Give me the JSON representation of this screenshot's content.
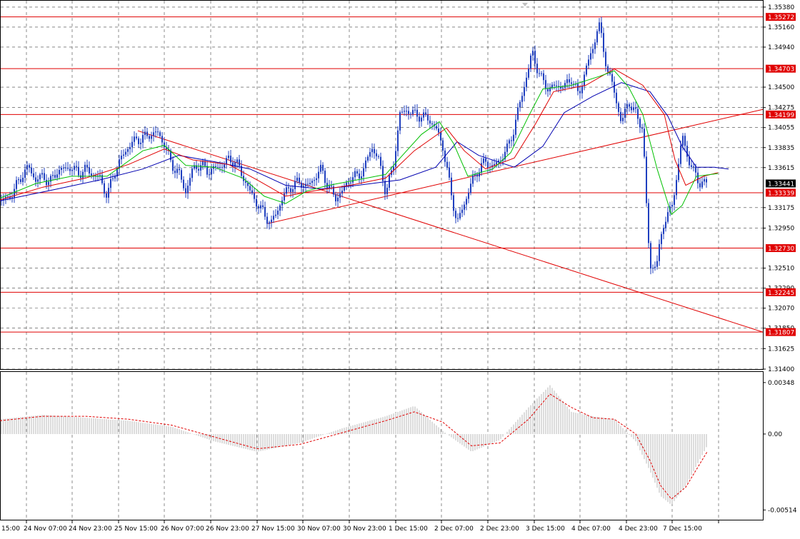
{
  "colors": {
    "background": "#ffffff",
    "candle": "#1f3fbf",
    "level": "#e00000",
    "trendline": "#e00000",
    "ma_fast": "#00c000",
    "ma_mid": "#e00000",
    "ma_slow": "#0000b0",
    "grid": "#000000",
    "current_price_badge": "#000000",
    "level_badge": "#e00000",
    "macd_hist": "#b8b8b8",
    "macd_signal": "#e00000"
  },
  "chart_data": [
    {
      "type": "candlestick",
      "title": "",
      "price_axis_ticks": [
        "1.35380",
        "1.35160",
        "1.34940",
        "1.34500",
        "1.34275",
        "1.34055",
        "1.33835",
        "1.33615",
        "1.33175",
        "1.32950",
        "1.32510",
        "1.32290",
        "1.32070",
        "1.31850",
        "1.31625",
        "1.31400"
      ],
      "ylim": [
        1.314,
        1.3545
      ],
      "time_axis_labels": [
        "15:00",
        "24 Nov 07:00",
        "24 Nov 23:00",
        "25 Nov 15:00",
        "26 Nov 07:00",
        "26 Nov 23:00",
        "27 Nov 15:00",
        "30 Nov 07:00",
        "30 Nov 23:00",
        "1 Dec 15:00",
        "2 Dec 07:00",
        "2 Dec 23:00",
        "3 Dec 15:00",
        "4 Dec 07:00",
        "4 Dec 23:00",
        "7 Dec 15:00"
      ],
      "horizontal_levels": [
        "1.35272",
        "1.34703",
        "1.34199",
        "1.33339",
        "1.32730",
        "1.32245",
        "1.31807"
      ],
      "current_price": "1.33441",
      "grid": true,
      "price_path": [
        [
          0,
          1.3325
        ],
        [
          12,
          1.3328
        ],
        [
          22,
          1.334
        ],
        [
          32,
          1.3355
        ],
        [
          40,
          1.3362
        ],
        [
          50,
          1.3348
        ],
        [
          60,
          1.3352
        ],
        [
          70,
          1.3345
        ],
        [
          80,
          1.3358
        ],
        [
          90,
          1.336
        ],
        [
          100,
          1.3362
        ],
        [
          110,
          1.3355
        ],
        [
          120,
          1.336
        ],
        [
          130,
          1.3354
        ],
        [
          140,
          1.335
        ],
        [
          150,
          1.333
        ],
        [
          160,
          1.3356
        ],
        [
          170,
          1.3372
        ],
        [
          180,
          1.3385
        ],
        [
          190,
          1.3392
        ],
        [
          200,
          1.3394
        ],
        [
          210,
          1.3398
        ],
        [
          220,
          1.34
        ],
        [
          230,
          1.3388
        ],
        [
          240,
          1.3365
        ],
        [
          250,
          1.3356
        ],
        [
          260,
          1.3335
        ],
        [
          270,
          1.336
        ],
        [
          280,
          1.3365
        ],
        [
          290,
          1.3358
        ],
        [
          300,
          1.336
        ],
        [
          310,
          1.3364
        ],
        [
          320,
          1.337
        ],
        [
          330,
          1.3368
        ],
        [
          340,
          1.3352
        ],
        [
          350,
          1.3335
        ],
        [
          360,
          1.3322
        ],
        [
          370,
          1.331
        ],
        [
          380,
          1.33
        ],
        [
          390,
          1.3318
        ],
        [
          400,
          1.3335
        ],
        [
          410,
          1.3342
        ],
        [
          420,
          1.3346
        ],
        [
          430,
          1.334
        ],
        [
          440,
          1.335
        ],
        [
          450,
          1.336
        ],
        [
          460,
          1.334
        ],
        [
          470,
          1.3328
        ],
        [
          480,
          1.3336
        ],
        [
          490,
          1.335
        ],
        [
          500,
          1.3352
        ],
        [
          510,
          1.336
        ],
        [
          520,
          1.3385
        ],
        [
          530,
          1.337
        ],
        [
          540,
          1.3335
        ],
        [
          550,
          1.336
        ],
        [
          560,
          1.342
        ],
        [
          570,
          1.3425
        ],
        [
          580,
          1.342
        ],
        [
          590,
          1.3418
        ],
        [
          600,
          1.3415
        ],
        [
          610,
          1.3405
        ],
        [
          620,
          1.3385
        ],
        [
          630,
          1.334
        ],
        [
          640,
          1.33
        ],
        [
          650,
          1.3322
        ],
        [
          660,
          1.3345
        ],
        [
          670,
          1.336
        ],
        [
          680,
          1.3368
        ],
        [
          690,
          1.3362
        ],
        [
          700,
          1.337
        ],
        [
          710,
          1.3382
        ],
        [
          720,
          1.3405
        ],
        [
          730,
          1.344
        ],
        [
          740,
          1.347
        ],
        [
          745,
          1.349
        ],
        [
          750,
          1.3475
        ],
        [
          760,
          1.3455
        ],
        [
          770,
          1.3448
        ],
        [
          780,
          1.3452
        ],
        [
          790,
          1.345
        ],
        [
          800,
          1.346
        ],
        [
          810,
          1.344
        ],
        [
          820,
          1.347
        ],
        [
          830,
          1.3492
        ],
        [
          838,
          1.3522
        ],
        [
          845,
          1.349
        ],
        [
          852,
          1.3465
        ],
        [
          860,
          1.3445
        ],
        [
          870,
          1.341
        ],
        [
          880,
          1.3435
        ],
        [
          890,
          1.342
        ],
        [
          900,
          1.3405
        ],
        [
          905,
          1.332
        ],
        [
          910,
          1.325
        ],
        [
          920,
          1.3258
        ],
        [
          930,
          1.3305
        ],
        [
          940,
          1.3315
        ],
        [
          950,
          1.3365
        ],
        [
          955,
          1.3398
        ],
        [
          960,
          1.338
        ],
        [
          970,
          1.3358
        ],
        [
          980,
          1.3345
        ],
        [
          990,
          1.3344
        ]
      ],
      "ma_fast": [
        [
          0,
          1.3328
        ],
        [
          50,
          1.3344
        ],
        [
          100,
          1.3352
        ],
        [
          150,
          1.3352
        ],
        [
          200,
          1.338
        ],
        [
          230,
          1.3386
        ],
        [
          260,
          1.3364
        ],
        [
          300,
          1.3362
        ],
        [
          340,
          1.335
        ],
        [
          370,
          1.333
        ],
        [
          400,
          1.3322
        ],
        [
          430,
          1.3336
        ],
        [
          460,
          1.3342
        ],
        [
          500,
          1.3348
        ],
        [
          540,
          1.3354
        ],
        [
          560,
          1.3372
        ],
        [
          590,
          1.3398
        ],
        [
          615,
          1.3412
        ],
        [
          635,
          1.3388
        ],
        [
          655,
          1.3352
        ],
        [
          690,
          1.336
        ],
        [
          715,
          1.3378
        ],
        [
          740,
          1.3418
        ],
        [
          760,
          1.3448
        ],
        [
          800,
          1.3452
        ],
        [
          840,
          1.3462
        ],
        [
          860,
          1.3468
        ],
        [
          880,
          1.345
        ],
        [
          900,
          1.342
        ],
        [
          920,
          1.336
        ],
        [
          940,
          1.331
        ],
        [
          955,
          1.332
        ],
        [
          975,
          1.3352
        ],
        [
          1005,
          1.3355
        ]
      ],
      "ma_mid": [
        [
          0,
          1.3326
        ],
        [
          60,
          1.334
        ],
        [
          120,
          1.335
        ],
        [
          180,
          1.3365
        ],
        [
          230,
          1.3382
        ],
        [
          270,
          1.337
        ],
        [
          320,
          1.3365
        ],
        [
          360,
          1.3348
        ],
        [
          400,
          1.333
        ],
        [
          440,
          1.3336
        ],
        [
          490,
          1.3342
        ],
        [
          540,
          1.335
        ],
        [
          580,
          1.338
        ],
        [
          625,
          1.3405
        ],
        [
          650,
          1.338
        ],
        [
          680,
          1.336
        ],
        [
          720,
          1.3372
        ],
        [
          750,
          1.341
        ],
        [
          775,
          1.3445
        ],
        [
          820,
          1.3452
        ],
        [
          860,
          1.347
        ],
        [
          900,
          1.3452
        ],
        [
          930,
          1.342
        ],
        [
          945,
          1.337
        ],
        [
          960,
          1.3342
        ],
        [
          985,
          1.3352
        ],
        [
          1005,
          1.3356
        ]
      ],
      "ma_slow": [
        [
          0,
          1.3325
        ],
        [
          80,
          1.3338
        ],
        [
          140,
          1.3348
        ],
        [
          200,
          1.336
        ],
        [
          250,
          1.3375
        ],
        [
          300,
          1.3368
        ],
        [
          350,
          1.336
        ],
        [
          400,
          1.3342
        ],
        [
          450,
          1.3338
        ],
        [
          500,
          1.3342
        ],
        [
          560,
          1.3348
        ],
        [
          610,
          1.3362
        ],
        [
          640,
          1.339
        ],
        [
          670,
          1.3375
        ],
        [
          720,
          1.3362
        ],
        [
          760,
          1.3385
        ],
        [
          790,
          1.3422
        ],
        [
          830,
          1.344
        ],
        [
          870,
          1.3455
        ],
        [
          910,
          1.3445
        ],
        [
          935,
          1.3418
        ],
        [
          955,
          1.3385
        ],
        [
          975,
          1.3362
        ],
        [
          1000,
          1.3362
        ],
        [
          1020,
          1.336
        ]
      ],
      "trendlines": [
        {
          "from": [
            193,
            1.3402
          ],
          "to": [
            1068,
            1.31807
          ]
        },
        {
          "from": [
            375,
            1.33
          ],
          "to": [
            1068,
            1.34255
          ]
        }
      ]
    },
    {
      "type": "bar",
      "title": "",
      "axis_ticks": [
        "0.00348",
        "0.00",
        "-0.00514"
      ],
      "ylim": [
        -0.0058,
        0.0042
      ],
      "x": [
        0,
        60,
        120,
        180,
        240,
        300,
        360,
        420,
        480,
        540,
        580,
        620,
        660,
        700,
        740,
        770,
        800,
        830,
        860,
        890,
        910,
        925,
        940,
        960,
        990
      ],
      "histogram": [
        0.001,
        0.0013,
        0.0011,
        0.0009,
        0.0005,
        -0.0005,
        -0.0012,
        -0.0006,
        0.0004,
        0.0012,
        0.0019,
        0.0002,
        -0.0012,
        -0.0004,
        0.0018,
        0.0033,
        0.0015,
        0.0012,
        0.001,
        -0.0005,
        -0.0025,
        -0.0042,
        -0.0048,
        -0.0035,
        -0.0008
      ],
      "signal": [
        0.0009,
        0.0012,
        0.0012,
        0.001,
        0.0006,
        -0.0002,
        -0.001,
        -0.0007,
        0.0001,
        0.0009,
        0.0015,
        0.0008,
        -0.0008,
        -0.0006,
        0.001,
        0.0027,
        0.0018,
        0.0011,
        0.001,
        0.0,
        -0.0018,
        -0.0035,
        -0.0044,
        -0.0036,
        -0.0012
      ]
    }
  ]
}
